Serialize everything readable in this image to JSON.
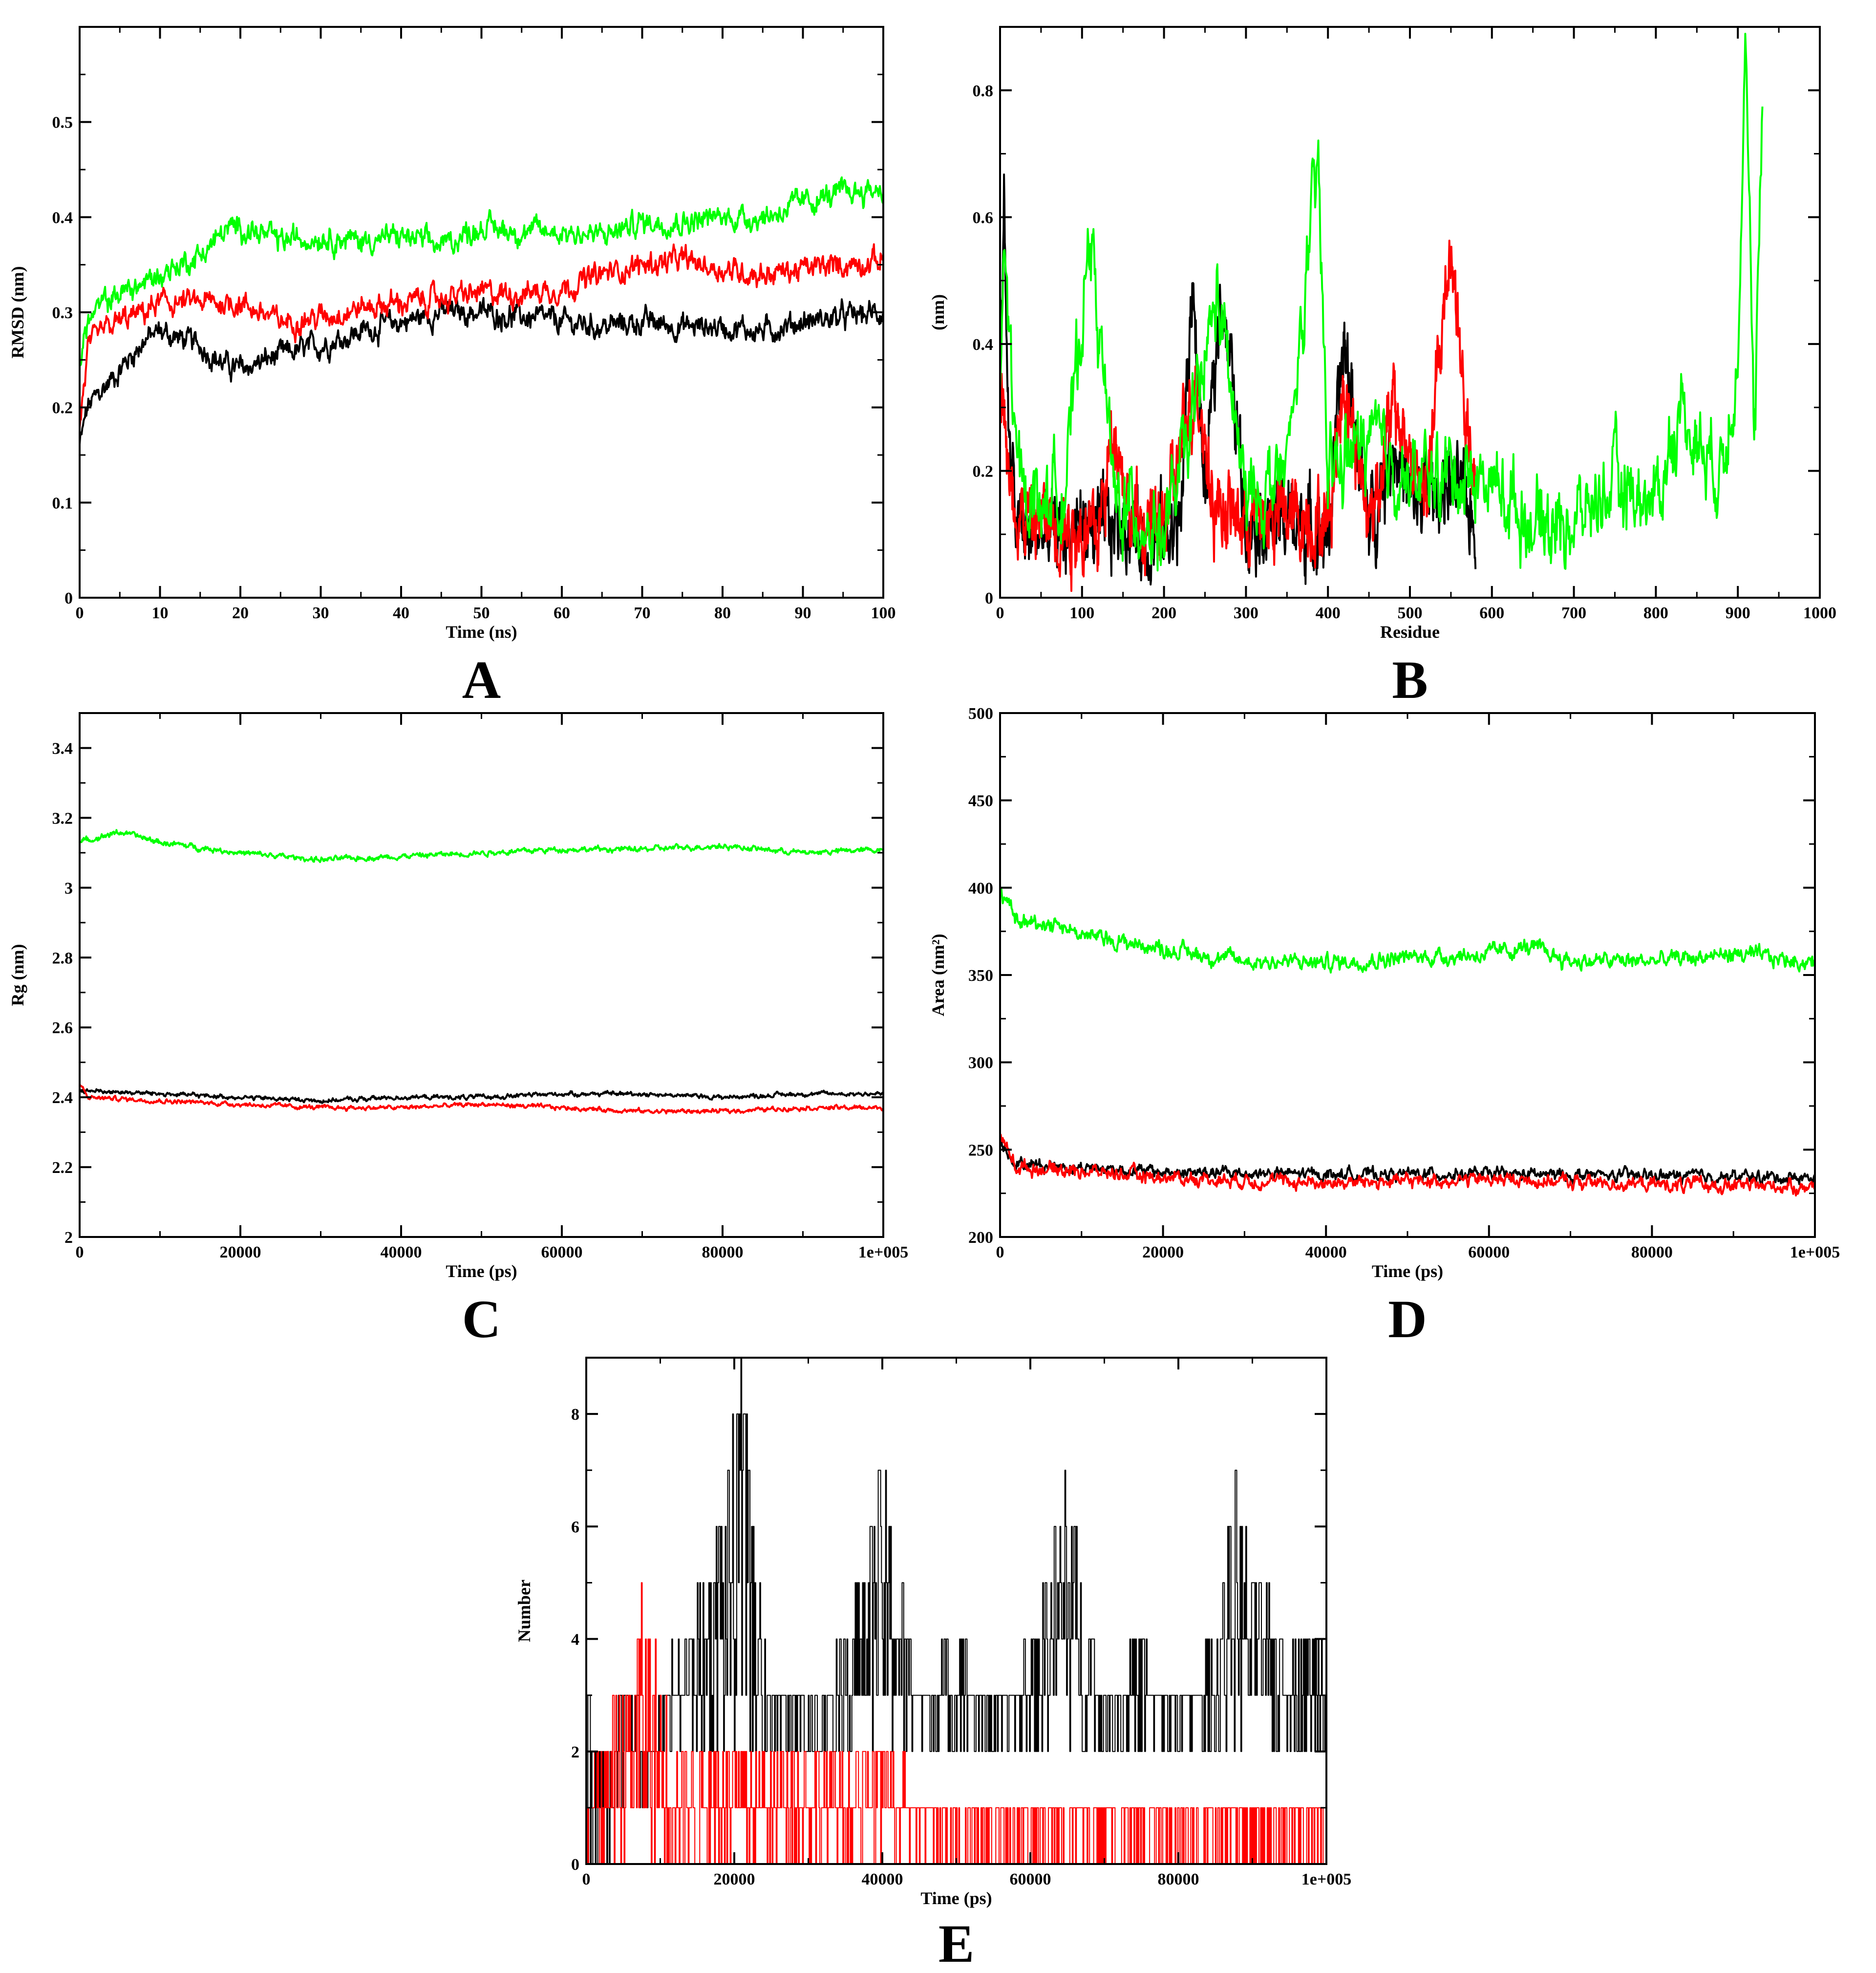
{
  "colors": {
    "series_1": "#000000",
    "series_2": "#ff0000",
    "series_3": "#00ff00"
  },
  "chart_data": [
    {
      "panel": "A",
      "type": "line",
      "xlabel": "Time (ns)",
      "ylabel": "RMSD (nm)",
      "xlim": [
        0,
        100
      ],
      "ylim": [
        0,
        0.6
      ],
      "xticks": [
        0,
        10,
        20,
        30,
        40,
        50,
        60,
        70,
        80,
        90,
        100
      ],
      "xtick_labels": [
        "0",
        "10",
        "20",
        "30",
        "40",
        "50",
        "60",
        "70",
        "80",
        "90",
        "100"
      ],
      "yticks": [
        0,
        0.1,
        0.2,
        0.3,
        0.4,
        0.5
      ],
      "ytick_labels": [
        "0",
        "0.1",
        "0.2",
        "0.3",
        "0.4",
        "0.5"
      ],
      "grid": false,
      "legend": "none",
      "series": [
        {
          "color": "#000000",
          "noise": 0.008,
          "x": [
            0,
            1,
            3,
            5,
            8,
            10,
            15,
            18,
            20,
            25,
            30,
            35,
            40,
            45,
            50,
            55,
            60,
            65,
            70,
            75,
            80,
            85,
            90,
            95,
            100
          ],
          "y": [
            0.16,
            0.2,
            0.22,
            0.24,
            0.27,
            0.28,
            0.265,
            0.245,
            0.24,
            0.255,
            0.265,
            0.28,
            0.29,
            0.3,
            0.3,
            0.295,
            0.29,
            0.285,
            0.29,
            0.285,
            0.285,
            0.28,
            0.29,
            0.295,
            0.3
          ]
        },
        {
          "color": "#ff0000",
          "noise": 0.008,
          "x": [
            0,
            1,
            3,
            5,
            8,
            10,
            15,
            20,
            25,
            30,
            35,
            40,
            45,
            50,
            55,
            60,
            65,
            70,
            75,
            80,
            85,
            90,
            95,
            100
          ],
          "y": [
            0.18,
            0.26,
            0.28,
            0.29,
            0.3,
            0.31,
            0.31,
            0.31,
            0.29,
            0.295,
            0.305,
            0.31,
            0.315,
            0.32,
            0.32,
            0.325,
            0.34,
            0.35,
            0.355,
            0.345,
            0.34,
            0.345,
            0.35,
            0.355
          ]
        },
        {
          "color": "#00ff00",
          "noise": 0.008,
          "x": [
            0,
            1,
            3,
            5,
            8,
            10,
            15,
            18,
            20,
            25,
            30,
            35,
            40,
            45,
            50,
            55,
            60,
            65,
            70,
            75,
            80,
            85,
            90,
            95,
            100
          ],
          "y": [
            0.25,
            0.29,
            0.31,
            0.32,
            0.33,
            0.34,
            0.36,
            0.385,
            0.39,
            0.375,
            0.38,
            0.375,
            0.38,
            0.37,
            0.39,
            0.385,
            0.385,
            0.38,
            0.395,
            0.395,
            0.4,
            0.4,
            0.415,
            0.425,
            0.43
          ]
        }
      ]
    },
    {
      "panel": "B",
      "type": "line",
      "xlabel": "Residue",
      "ylabel": "(nm)",
      "xlim": [
        0,
        1000
      ],
      "ylim": [
        0,
        0.9
      ],
      "xticks": [
        0,
        100,
        200,
        300,
        400,
        500,
        600,
        700,
        800,
        900,
        1000
      ],
      "xtick_labels": [
        "0",
        "100",
        "200",
        "300",
        "400",
        "500",
        "600",
        "700",
        "800",
        "900",
        "1000"
      ],
      "yticks": [
        0,
        0.2,
        0.4,
        0.6,
        0.8
      ],
      "ytick_labels": [
        "0",
        "0.2",
        "0.4",
        "0.6",
        "0.8"
      ],
      "grid": false,
      "legend": "none",
      "series": [
        {
          "color": "#000000",
          "noise": 0.04,
          "x": [
            0,
            5,
            10,
            20,
            30,
            50,
            80,
            100,
            120,
            150,
            180,
            200,
            220,
            235,
            250,
            270,
            300,
            350,
            400,
            420,
            450,
            480,
            500,
            550,
            580
          ],
          "y": [
            0.3,
            0.66,
            0.25,
            0.12,
            0.1,
            0.1,
            0.1,
            0.12,
            0.1,
            0.12,
            0.09,
            0.1,
            0.12,
            0.5,
            0.15,
            0.5,
            0.13,
            0.12,
            0.1,
            0.4,
            0.11,
            0.25,
            0.15,
            0.18,
            0.12
          ]
        },
        {
          "color": "#ff0000",
          "noise": 0.04,
          "x": [
            0,
            5,
            10,
            30,
            60,
            90,
            120,
            140,
            160,
            200,
            240,
            260,
            300,
            350,
            400,
            420,
            450,
            480,
            520,
            550,
            570,
            580
          ],
          "y": [
            0.3,
            0.35,
            0.18,
            0.12,
            0.12,
            0.11,
            0.1,
            0.28,
            0.12,
            0.11,
            0.35,
            0.15,
            0.12,
            0.13,
            0.12,
            0.35,
            0.12,
            0.3,
            0.15,
            0.57,
            0.25,
            0.15
          ]
        },
        {
          "color": "#00ff00",
          "noise": 0.04,
          "x": [
            0,
            5,
            10,
            20,
            50,
            80,
            110,
            140,
            180,
            200,
            240,
            265,
            300,
            350,
            388,
            400,
            450,
            500,
            550,
            600,
            650,
            700,
            750,
            800,
            830,
            850,
            880,
            900,
            910,
            920,
            930
          ],
          "y": [
            0.3,
            0.55,
            0.45,
            0.2,
            0.15,
            0.18,
            0.58,
            0.15,
            0.12,
            0.1,
            0.3,
            0.48,
            0.15,
            0.2,
            0.68,
            0.2,
            0.25,
            0.18,
            0.2,
            0.18,
            0.12,
            0.12,
            0.18,
            0.15,
            0.3,
            0.25,
            0.2,
            0.4,
            0.86,
            0.2,
            0.8
          ]
        }
      ]
    },
    {
      "panel": "C",
      "type": "line",
      "xlabel": "Time (ps)",
      "ylabel": "Rg (nm)",
      "xlim": [
        0,
        100000
      ],
      "ylim": [
        2,
        3.5
      ],
      "xticks": [
        0,
        20000,
        40000,
        60000,
        80000,
        100000
      ],
      "xtick_labels": [
        "0",
        "20000",
        "40000",
        "60000",
        "80000",
        "1e+005"
      ],
      "yticks": [
        2,
        2.2,
        2.4,
        2.6,
        2.8,
        3,
        3.2,
        3.4
      ],
      "ytick_labels": [
        "2",
        "2.2",
        "2.4",
        "2.6",
        "2.8",
        "3",
        "3.2",
        "3.4"
      ],
      "grid": false,
      "legend": "none",
      "series": [
        {
          "color": "#000000",
          "noise": 0.004,
          "x": [
            0,
            10000,
            20000,
            30000,
            40000,
            50000,
            60000,
            70000,
            80000,
            90000,
            100000
          ],
          "y": [
            2.42,
            2.41,
            2.4,
            2.39,
            2.4,
            2.4,
            2.41,
            2.41,
            2.4,
            2.41,
            2.41
          ]
        },
        {
          "color": "#ff0000",
          "noise": 0.004,
          "x": [
            0,
            1000,
            10000,
            20000,
            30000,
            40000,
            50000,
            60000,
            70000,
            75000,
            80000,
            90000,
            100000
          ],
          "y": [
            2.44,
            2.4,
            2.39,
            2.38,
            2.37,
            2.37,
            2.38,
            2.37,
            2.36,
            2.36,
            2.36,
            2.37,
            2.37
          ]
        },
        {
          "color": "#00ff00",
          "noise": 0.005,
          "x": [
            0,
            5000,
            10000,
            20000,
            30000,
            40000,
            50000,
            60000,
            70000,
            80000,
            90000,
            100000
          ],
          "y": [
            3.13,
            3.16,
            3.13,
            3.1,
            3.08,
            3.09,
            3.1,
            3.11,
            3.11,
            3.12,
            3.1,
            3.11
          ]
        }
      ]
    },
    {
      "panel": "D",
      "type": "line",
      "xlabel": "Time (ps)",
      "ylabel": "Area (nm²)",
      "xlim": [
        0,
        100000
      ],
      "ylim": [
        200,
        500
      ],
      "xticks": [
        0,
        20000,
        40000,
        60000,
        80000,
        100000
      ],
      "xtick_labels": [
        "0",
        "20000",
        "40000",
        "60000",
        "80000",
        "1e+005"
      ],
      "yticks": [
        200,
        250,
        300,
        350,
        400,
        450,
        500
      ],
      "ytick_labels": [
        "200",
        "250",
        "300",
        "350",
        "400",
        "450",
        "500"
      ],
      "grid": false,
      "legend": "none",
      "series": [
        {
          "color": "#000000",
          "noise": 2.2,
          "x": [
            0,
            2000,
            10000,
            20000,
            40000,
            60000,
            80000,
            100000
          ],
          "y": [
            255,
            242,
            240,
            237,
            236,
            236,
            235,
            234
          ]
        },
        {
          "color": "#ff0000",
          "noise": 2.5,
          "x": [
            0,
            2000,
            10000,
            20000,
            40000,
            60000,
            80000,
            100000
          ],
          "y": [
            258,
            240,
            238,
            234,
            231,
            233,
            230,
            229
          ]
        },
        {
          "color": "#00ff00",
          "noise": 3.0,
          "x": [
            0,
            2000,
            7000,
            10000,
            20000,
            30000,
            40000,
            50000,
            60000,
            65000,
            70000,
            80000,
            90000,
            100000
          ],
          "y": [
            400,
            380,
            380,
            373,
            365,
            358,
            357,
            360,
            362,
            366,
            358,
            358,
            362,
            357
          ]
        }
      ]
    },
    {
      "panel": "E",
      "type": "line",
      "xlabel": "Time (ps)",
      "ylabel": "Number",
      "xlim": [
        0,
        100000
      ],
      "ylim": [
        0,
        9
      ],
      "xticks": [
        0,
        20000,
        40000,
        60000,
        80000,
        100000
      ],
      "xtick_labels": [
        "0",
        "20000",
        "40000",
        "60000",
        "80000",
        "1e+005"
      ],
      "yticks": [
        0,
        2,
        4,
        6,
        8
      ],
      "ytick_labels": [
        "0",
        "2",
        "4",
        "6",
        "8"
      ],
      "grid": false,
      "legend": "none",
      "series": [
        {
          "color": "#000000",
          "style": "step",
          "x": [
            0,
            2000,
            5000,
            8000,
            10000,
            13000,
            15000,
            18000,
            20000,
            21000,
            23000,
            25000,
            30000,
            35000,
            40000,
            45000,
            50000,
            55000,
            60000,
            65000,
            70000,
            75000,
            80000,
            85000,
            88000,
            90000,
            95000,
            100000
          ],
          "y": [
            3,
            2,
            4,
            2,
            3,
            4,
            5,
            6,
            8,
            9,
            5,
            3,
            3,
            4,
            7,
            3,
            4,
            3,
            4,
            7,
            3,
            4,
            3,
            4,
            7,
            5,
            4,
            4
          ],
          "min": [
            0,
            0,
            1,
            1,
            2,
            2,
            2,
            2,
            2,
            2,
            2,
            2,
            2,
            2,
            2,
            2,
            2,
            2,
            2,
            2,
            2,
            2,
            2,
            2,
            2,
            2,
            2,
            2
          ]
        },
        {
          "color": "#ff0000",
          "style": "step",
          "x": [
            0,
            2000,
            5000,
            8000,
            10000,
            13000,
            15000,
            20000,
            25000,
            30000,
            40000,
            50000,
            60000,
            70000,
            80000,
            90000,
            100000
          ],
          "y": [
            2,
            2,
            3,
            5,
            3,
            2,
            2,
            2,
            2,
            2,
            2,
            1,
            1,
            1,
            1,
            1,
            1
          ],
          "min": [
            0,
            0,
            0,
            0,
            0,
            0,
            0,
            0,
            0,
            0,
            0,
            0,
            0,
            0,
            0,
            0,
            0
          ]
        }
      ]
    }
  ]
}
